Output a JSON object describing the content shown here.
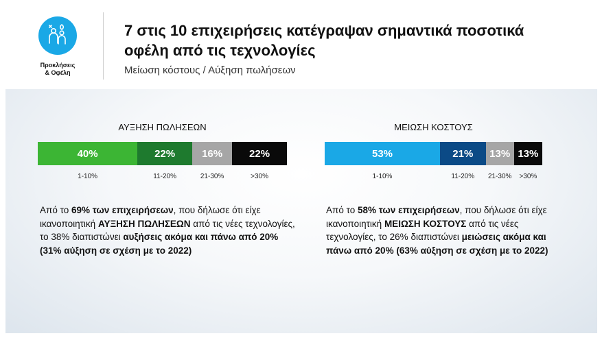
{
  "header": {
    "logo_label": [
      "Προκλήσεις",
      "& Οφέλη"
    ],
    "title": "7 στις 10 επιχειρήσεις κατέγραψαν σημαντικά ποσοτικά οφέλη από τις τεχνολογίες",
    "subtitle": "Μείωση κόστους / Αύξηση πωλήσεων"
  },
  "chart_data": [
    {
      "type": "bar",
      "orientation": "horizontal-stacked",
      "title": "ΑΥΞΗΣΗ ΠΩΛΗΣΕΩΝ",
      "categories": [
        "1-10%",
        "11-20%",
        "21-30%",
        ">30%"
      ],
      "values": [
        40,
        22,
        16,
        22
      ],
      "labels": [
        "40%",
        "22%",
        "16%",
        "22%"
      ],
      "colors": [
        "#3cb534",
        "#1e7a2e",
        "#a6a6a6",
        "#0a0a0a"
      ]
    },
    {
      "type": "bar",
      "orientation": "horizontal-stacked",
      "title": "ΜΕΙΩΣΗ ΚΟΣΤΟΥΣ",
      "categories": [
        "1-10%",
        "11-20%",
        "21-30%",
        ">30%"
      ],
      "values": [
        53,
        21,
        13,
        13
      ],
      "labels": [
        "53%",
        "21%",
        "13%",
        "13%"
      ],
      "colors": [
        "#1aa8e6",
        "#0b4a86",
        "#a6a6a6",
        "#0a0a0a"
      ]
    }
  ],
  "notes": {
    "left": [
      {
        "t": "Από το ",
        "b": false
      },
      {
        "t": "69% των επιχειρήσεων",
        "b": true
      },
      {
        "t": ", που δήλωσε ότι είχε ικανοποιητική ",
        "b": false
      },
      {
        "t": "ΑΥΞΗΣΗ ΠΩΛΗΣΕΩΝ",
        "b": true
      },
      {
        "t": " από τις νέες τεχνολογίες, το 38% διαπιστώνει ",
        "b": false
      },
      {
        "t": "αυξήσεις ακόμα και πάνω από 20% (31% αύξηση σε σχέση με το 2022)",
        "b": true
      }
    ],
    "right": [
      {
        "t": "Από το ",
        "b": false
      },
      {
        "t": "58% των επιχειρήσεων",
        "b": true
      },
      {
        "t": ", που δήλωσε ότι είχε ικανοποιητική ",
        "b": false
      },
      {
        "t": "ΜΕΙΩΣΗ ΚΟΣΤΟΥΣ",
        "b": true
      },
      {
        "t": " από τις νέες τεχνολογίες, το 26% διαπιστώνει ",
        "b": false
      },
      {
        "t": "μειώσεις ακόμα και πάνω από 20% (63% αύξηση σε σχέση με το 2022)",
        "b": true
      }
    ]
  }
}
